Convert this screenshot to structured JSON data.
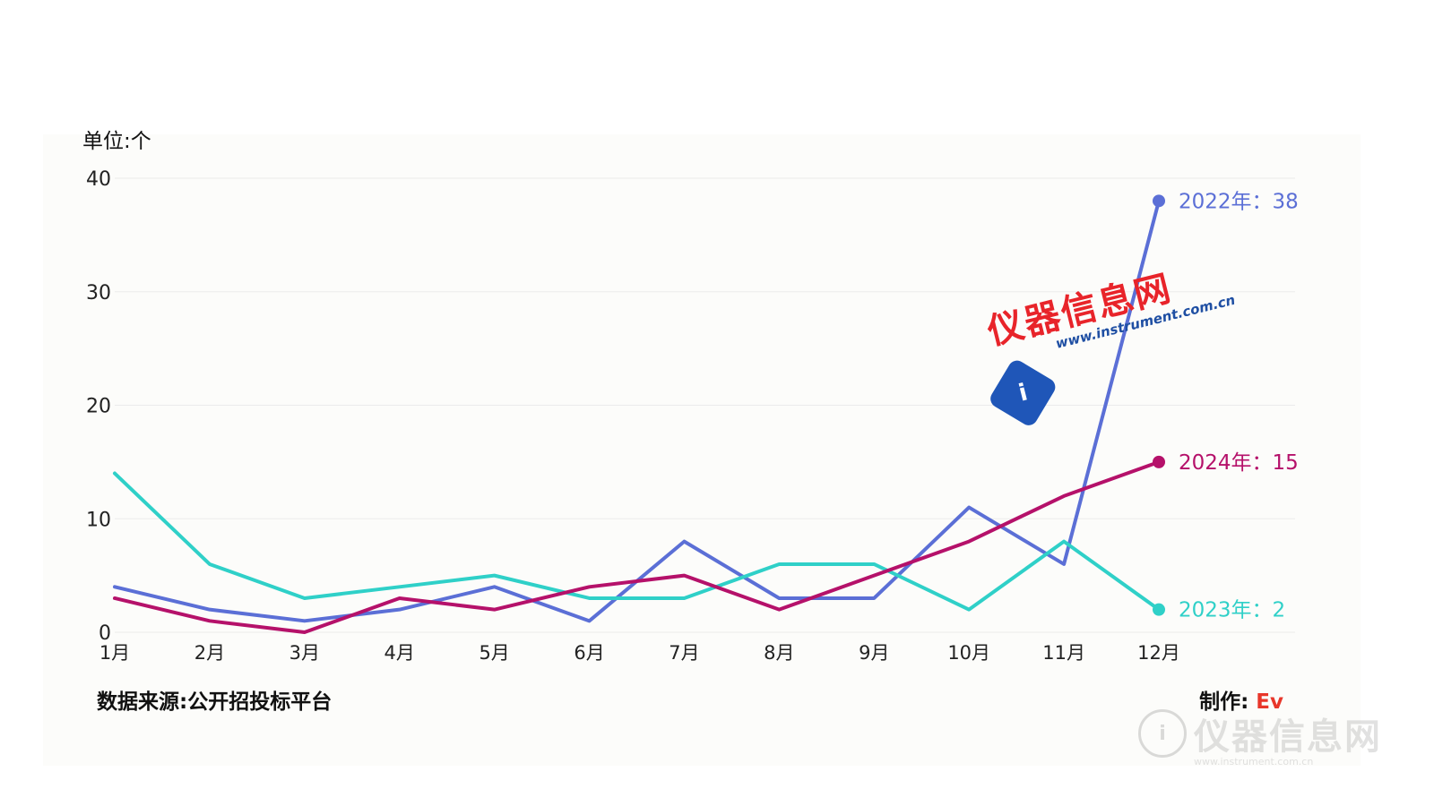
{
  "unit_label": "单位:个",
  "source_label": "数据来源:公开招投标平台",
  "maker_label": "制作: ",
  "maker_name": "Ev",
  "watermark": {
    "title": "仪器信息网",
    "url": "www.instrument.com.cn"
  },
  "colors": {
    "2022": "#5b6fd6",
    "2023": "#2fd0c8",
    "2024": "#b5116a",
    "grid": "#ebebeb",
    "accent": "#e8362a"
  },
  "chart_data": {
    "type": "line",
    "title": "",
    "xlabel": "",
    "ylabel": "单位:个",
    "categories": [
      "1月",
      "2月",
      "3月",
      "4月",
      "5月",
      "6月",
      "7月",
      "8月",
      "9月",
      "10月",
      "11月",
      "12月"
    ],
    "ylim": [
      0,
      40
    ],
    "yticks": [
      0,
      10,
      20,
      30,
      40
    ],
    "grid": true,
    "series": [
      {
        "name": "2022年",
        "values": [
          4,
          2,
          1,
          2,
          4,
          1,
          8,
          3,
          3,
          11,
          6,
          38
        ],
        "end_label": "2022年：38"
      },
      {
        "name": "2023年",
        "values": [
          14,
          6,
          3,
          4,
          5,
          3,
          3,
          6,
          6,
          2,
          8,
          2
        ],
        "end_label": "2023年：2"
      },
      {
        "name": "2024年",
        "values": [
          3,
          1,
          0,
          3,
          2,
          4,
          5,
          2,
          5,
          8,
          12,
          15
        ],
        "end_label": "2024年：15"
      }
    ]
  }
}
